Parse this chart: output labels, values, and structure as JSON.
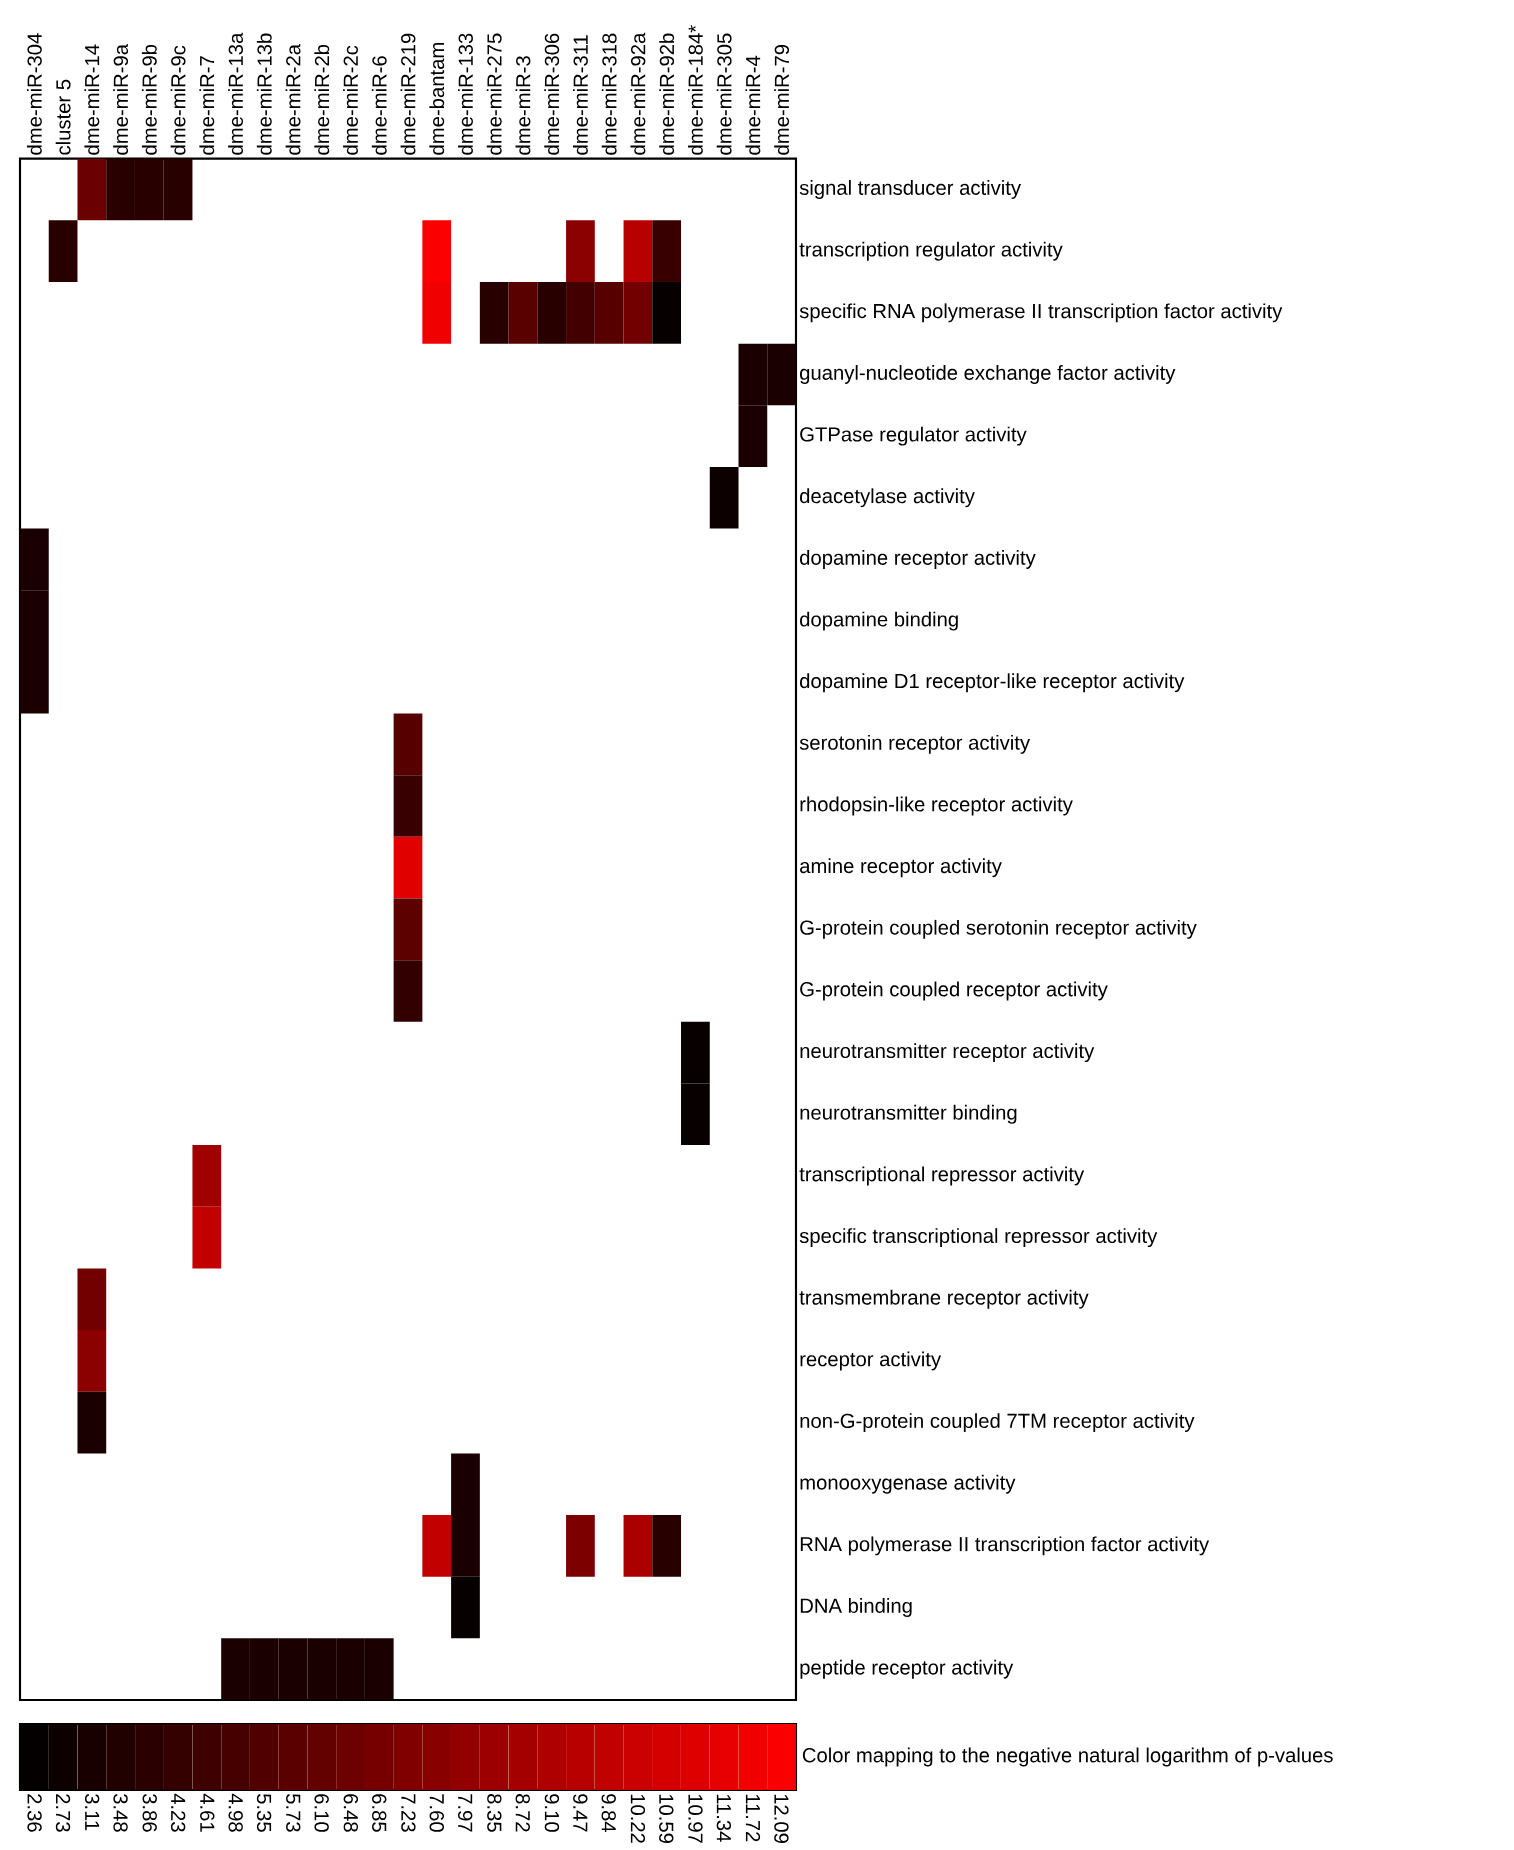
{
  "chart_data": {
    "type": "heatmap",
    "categories": [
      "dme-miR-304",
      "cluster 5",
      "dme-miR-14",
      "dme-miR-9a",
      "dme-miR-9b",
      "dme-miR-9c",
      "dme-miR-7",
      "dme-miR-13a",
      "dme-miR-13b",
      "dme-miR-2a",
      "dme-miR-2b",
      "dme-miR-2c",
      "dme-miR-6",
      "dme-miR-219",
      "dme-bantam",
      "dme-miR-133",
      "dme-miR-275",
      "dme-miR-3",
      "dme-miR-306",
      "dme-miR-311",
      "dme-miR-318",
      "dme-miR-92a",
      "dme-miR-92b",
      "dme-miR-184*",
      "dme-miR-305",
      "dme-miR-4",
      "dme-miR-79"
    ],
    "y_categories": [
      "signal transducer activity",
      "transcription regulator activity",
      "specific RNA polymerase II transcription factor activity",
      "guanyl-nucleotide exchange factor activity",
      "GTPase regulator activity",
      "deacetylase activity",
      "dopamine receptor activity",
      "dopamine binding",
      "dopamine D1 receptor-like receptor activity",
      "serotonin receptor activity",
      "rhodopsin-like receptor activity",
      "amine receptor activity",
      "G-protein coupled serotonin receptor activity",
      "G-protein coupled receptor activity",
      "neurotransmitter receptor activity",
      "neurotransmitter binding",
      "transcriptional repressor activity",
      "specific transcriptional repressor activity",
      "transmembrane receptor activity",
      "receptor activity",
      "non-G-protein coupled 7TM receptor activity",
      "monooxygenase activity",
      "RNA polymerase II transcription factor activity",
      "DNA binding",
      "peptide receptor activity"
    ],
    "cells": [
      [
        null,
        null,
        6.4,
        3.8,
        3.8,
        3.8,
        null,
        null,
        null,
        null,
        null,
        null,
        null,
        null,
        null,
        null,
        null,
        null,
        null,
        null,
        null,
        null,
        null,
        null,
        null,
        null,
        null
      ],
      [
        null,
        3.8,
        null,
        null,
        null,
        null,
        null,
        null,
        null,
        null,
        null,
        null,
        null,
        null,
        12.09,
        null,
        null,
        null,
        null,
        7.7,
        null,
        9.5,
        4.4,
        null,
        null,
        null,
        null
      ],
      [
        null,
        null,
        null,
        null,
        null,
        null,
        null,
        null,
        null,
        null,
        null,
        null,
        null,
        null,
        11.7,
        null,
        3.8,
        5.7,
        3.8,
        4.8,
        5.6,
        6.7,
        2.4,
        null,
        null,
        null,
        null
      ],
      [
        null,
        null,
        null,
        null,
        null,
        null,
        null,
        null,
        null,
        null,
        null,
        null,
        null,
        null,
        null,
        null,
        null,
        null,
        null,
        null,
        null,
        null,
        null,
        null,
        null,
        3.2,
        3.2
      ],
      [
        null,
        null,
        null,
        null,
        null,
        null,
        null,
        null,
        null,
        null,
        null,
        null,
        null,
        null,
        null,
        null,
        null,
        null,
        null,
        null,
        null,
        null,
        null,
        null,
        null,
        3.2,
        null
      ],
      [
        null,
        null,
        null,
        null,
        null,
        null,
        null,
        null,
        null,
        null,
        null,
        null,
        null,
        null,
        null,
        null,
        null,
        null,
        null,
        null,
        null,
        null,
        null,
        null,
        2.7,
        null,
        null
      ],
      [
        3.2,
        null,
        null,
        null,
        null,
        null,
        null,
        null,
        null,
        null,
        null,
        null,
        null,
        null,
        null,
        null,
        null,
        null,
        null,
        null,
        null,
        null,
        null,
        null,
        null,
        null,
        null
      ],
      [
        3.2,
        null,
        null,
        null,
        null,
        null,
        null,
        null,
        null,
        null,
        null,
        null,
        null,
        null,
        null,
        null,
        null,
        null,
        null,
        null,
        null,
        null,
        null,
        null,
        null,
        null,
        null
      ],
      [
        3.2,
        null,
        null,
        null,
        null,
        null,
        null,
        null,
        null,
        null,
        null,
        null,
        null,
        null,
        null,
        null,
        null,
        null,
        null,
        null,
        null,
        null,
        null,
        null,
        null,
        null,
        null
      ],
      [
        null,
        null,
        null,
        null,
        null,
        null,
        null,
        null,
        null,
        null,
        null,
        null,
        null,
        5.6,
        null,
        null,
        null,
        null,
        null,
        null,
        null,
        null,
        null,
        null,
        null,
        null,
        null
      ],
      [
        null,
        null,
        null,
        null,
        null,
        null,
        null,
        null,
        null,
        null,
        null,
        null,
        null,
        4.4,
        null,
        null,
        null,
        null,
        null,
        null,
        null,
        null,
        null,
        null,
        null,
        null,
        null
      ],
      [
        null,
        null,
        null,
        null,
        null,
        null,
        null,
        null,
        null,
        null,
        null,
        null,
        null,
        11.1,
        null,
        null,
        null,
        null,
        null,
        null,
        null,
        null,
        null,
        null,
        null,
        null,
        null
      ],
      [
        null,
        null,
        null,
        null,
        null,
        null,
        null,
        null,
        null,
        null,
        null,
        null,
        null,
        5.8,
        null,
        null,
        null,
        null,
        null,
        null,
        null,
        null,
        null,
        null,
        null,
        null,
        null
      ],
      [
        null,
        null,
        null,
        null,
        null,
        null,
        null,
        null,
        null,
        null,
        null,
        null,
        null,
        4.2,
        null,
        null,
        null,
        null,
        null,
        null,
        null,
        null,
        null,
        null,
        null,
        null,
        null
      ],
      [
        null,
        null,
        null,
        null,
        null,
        null,
        null,
        null,
        null,
        null,
        null,
        null,
        null,
        null,
        null,
        null,
        null,
        null,
        null,
        null,
        null,
        null,
        null,
        2.4,
        null,
        null,
        null
      ],
      [
        null,
        null,
        null,
        null,
        null,
        null,
        null,
        null,
        null,
        null,
        null,
        null,
        null,
        null,
        null,
        null,
        null,
        null,
        null,
        null,
        null,
        null,
        null,
        2.4,
        null,
        null,
        null
      ],
      [
        null,
        null,
        null,
        null,
        null,
        null,
        8.5,
        null,
        null,
        null,
        null,
        null,
        null,
        null,
        null,
        null,
        null,
        null,
        null,
        null,
        null,
        null,
        null,
        null,
        null,
        null,
        null
      ],
      [
        null,
        null,
        null,
        null,
        null,
        null,
        9.9,
        null,
        null,
        null,
        null,
        null,
        null,
        null,
        null,
        null,
        null,
        null,
        null,
        null,
        null,
        null,
        null,
        null,
        null,
        null,
        null
      ],
      [
        null,
        null,
        6.7,
        null,
        null,
        null,
        null,
        null,
        null,
        null,
        null,
        null,
        null,
        null,
        null,
        null,
        null,
        null,
        null,
        null,
        null,
        null,
        null,
        null,
        null,
        null,
        null
      ],
      [
        null,
        null,
        7.7,
        null,
        null,
        null,
        null,
        null,
        null,
        null,
        null,
        null,
        null,
        null,
        null,
        null,
        null,
        null,
        null,
        null,
        null,
        null,
        null,
        null,
        null,
        null,
        null
      ],
      [
        null,
        null,
        3.2,
        null,
        null,
        null,
        null,
        null,
        null,
        null,
        null,
        null,
        null,
        null,
        null,
        null,
        null,
        null,
        null,
        null,
        null,
        null,
        null,
        null,
        null,
        null,
        null
      ],
      [
        null,
        null,
        null,
        null,
        null,
        null,
        null,
        null,
        null,
        null,
        null,
        null,
        null,
        null,
        null,
        3.2,
        null,
        null,
        null,
        null,
        null,
        null,
        null,
        null,
        null,
        null,
        null
      ],
      [
        null,
        null,
        null,
        null,
        null,
        null,
        null,
        null,
        null,
        null,
        null,
        null,
        null,
        null,
        9.9,
        3.2,
        null,
        null,
        null,
        7.1,
        null,
        8.9,
        3.8,
        null,
        null,
        null,
        null
      ],
      [
        null,
        null,
        null,
        null,
        null,
        null,
        null,
        null,
        null,
        null,
        null,
        null,
        null,
        null,
        null,
        2.4,
        null,
        null,
        null,
        null,
        null,
        null,
        null,
        null,
        null,
        null,
        null
      ],
      [
        null,
        null,
        null,
        null,
        null,
        null,
        null,
        3.2,
        3.2,
        3.2,
        3.2,
        3.2,
        3.2,
        null,
        null,
        null,
        null,
        null,
        null,
        null,
        null,
        null,
        null,
        null,
        null,
        null,
        null
      ]
    ],
    "clim": [
      2.17,
      12.28
    ],
    "cticks": [
      2.36,
      2.73,
      3.11,
      3.48,
      3.86,
      4.23,
      4.61,
      4.98,
      5.35,
      5.73,
      {
        "value": 6.1,
        "label": "6.10"
      },
      6.48,
      6.85,
      7.23,
      {
        "value": 7.6,
        "label": "7.60"
      },
      7.97,
      8.35,
      8.72,
      {
        "value": 9.1,
        "label": "9.10"
      },
      9.47,
      9.84,
      10.22,
      10.59,
      10.97,
      11.34,
      11.72,
      12.09
    ],
    "clabel": "Color mapping to the negative natural logarithm of p-values"
  }
}
